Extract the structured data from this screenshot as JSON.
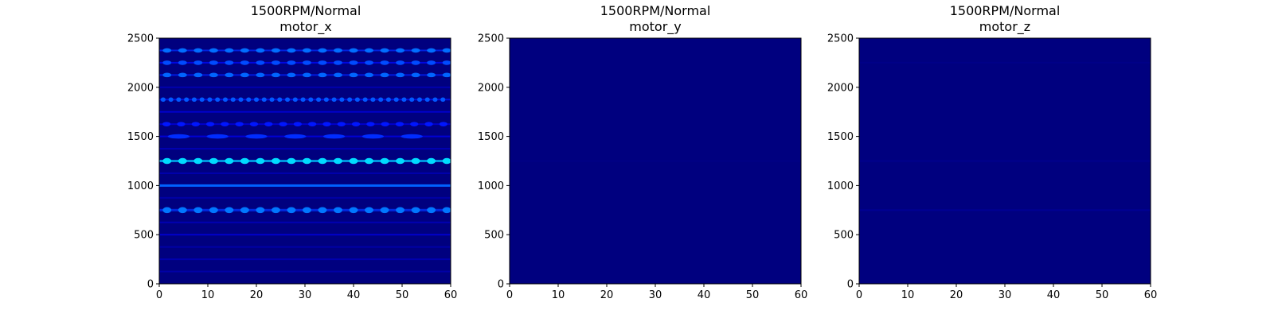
{
  "colors": {
    "background": "#00007f",
    "band_low": "#0000ff",
    "band_high": "#00dcff",
    "axis": "#000000"
  },
  "chart_data": [
    {
      "type": "heatmap",
      "title": "1500RPM/Normal",
      "subtitle": "motor_x",
      "xlim": [
        0,
        60
      ],
      "ylim": [
        0,
        2500
      ],
      "xticks": [
        0,
        10,
        20,
        30,
        40,
        50,
        60
      ],
      "yticks": [
        0,
        500,
        1000,
        1500,
        2000,
        2500
      ],
      "colormap": "jet",
      "grid": false,
      "bands": [
        {
          "y": 125,
          "intensity": 0.15,
          "pulse_period": 0
        },
        {
          "y": 250,
          "intensity": 0.18,
          "pulse_period": 0
        },
        {
          "y": 375,
          "intensity": 0.15,
          "pulse_period": 0
        },
        {
          "y": 500,
          "intensity": 0.3,
          "pulse_period": 0
        },
        {
          "y": 625,
          "intensity": 0.2,
          "pulse_period": 0
        },
        {
          "y": 750,
          "intensity": 0.62,
          "pulse_period": 3.2
        },
        {
          "y": 875,
          "intensity": 0.15,
          "pulse_period": 0
        },
        {
          "y": 1000,
          "intensity": 0.72,
          "pulse_period": 0
        },
        {
          "y": 1125,
          "intensity": 0.18,
          "pulse_period": 0
        },
        {
          "y": 1250,
          "intensity": 0.95,
          "pulse_period": 3.2
        },
        {
          "y": 1375,
          "intensity": 0.2,
          "pulse_period": 0
        },
        {
          "y": 1500,
          "intensity": 0.45,
          "pulse_period": 8
        },
        {
          "y": 1625,
          "intensity": 0.4,
          "pulse_period": 3
        },
        {
          "y": 1750,
          "intensity": 0.3,
          "pulse_period": 0
        },
        {
          "y": 1875,
          "intensity": 0.55,
          "pulse_period": 1.6
        },
        {
          "y": 2000,
          "intensity": 0.18,
          "pulse_period": 0
        },
        {
          "y": 2125,
          "intensity": 0.58,
          "pulse_period": 3.2
        },
        {
          "y": 2250,
          "intensity": 0.52,
          "pulse_period": 3.2
        },
        {
          "y": 2375,
          "intensity": 0.6,
          "pulse_period": 3.2
        }
      ]
    },
    {
      "type": "heatmap",
      "title": "1500RPM/Normal",
      "subtitle": "motor_y",
      "xlim": [
        0,
        60
      ],
      "ylim": [
        0,
        2500
      ],
      "xticks": [
        0,
        10,
        20,
        30,
        40,
        50,
        60
      ],
      "yticks": [
        0,
        500,
        1000,
        1500,
        2000,
        2500
      ],
      "colormap": "jet",
      "grid": false,
      "bands": [
        {
          "y": 1250,
          "intensity": 0.02,
          "pulse_period": 0
        }
      ]
    },
    {
      "type": "heatmap",
      "title": "1500RPM/Normal",
      "subtitle": "motor_z",
      "xlim": [
        0,
        60
      ],
      "ylim": [
        0,
        2500
      ],
      "xticks": [
        0,
        10,
        20,
        30,
        40,
        50,
        60
      ],
      "yticks": [
        0,
        500,
        1000,
        1500,
        2000,
        2500
      ],
      "colormap": "jet",
      "grid": false,
      "bands": [
        {
          "y": 750,
          "intensity": 0.08,
          "pulse_period": 0
        },
        {
          "y": 1250,
          "intensity": 0.05,
          "pulse_period": 0
        },
        {
          "y": 2250,
          "intensity": 0.03,
          "pulse_period": 0
        }
      ]
    }
  ]
}
